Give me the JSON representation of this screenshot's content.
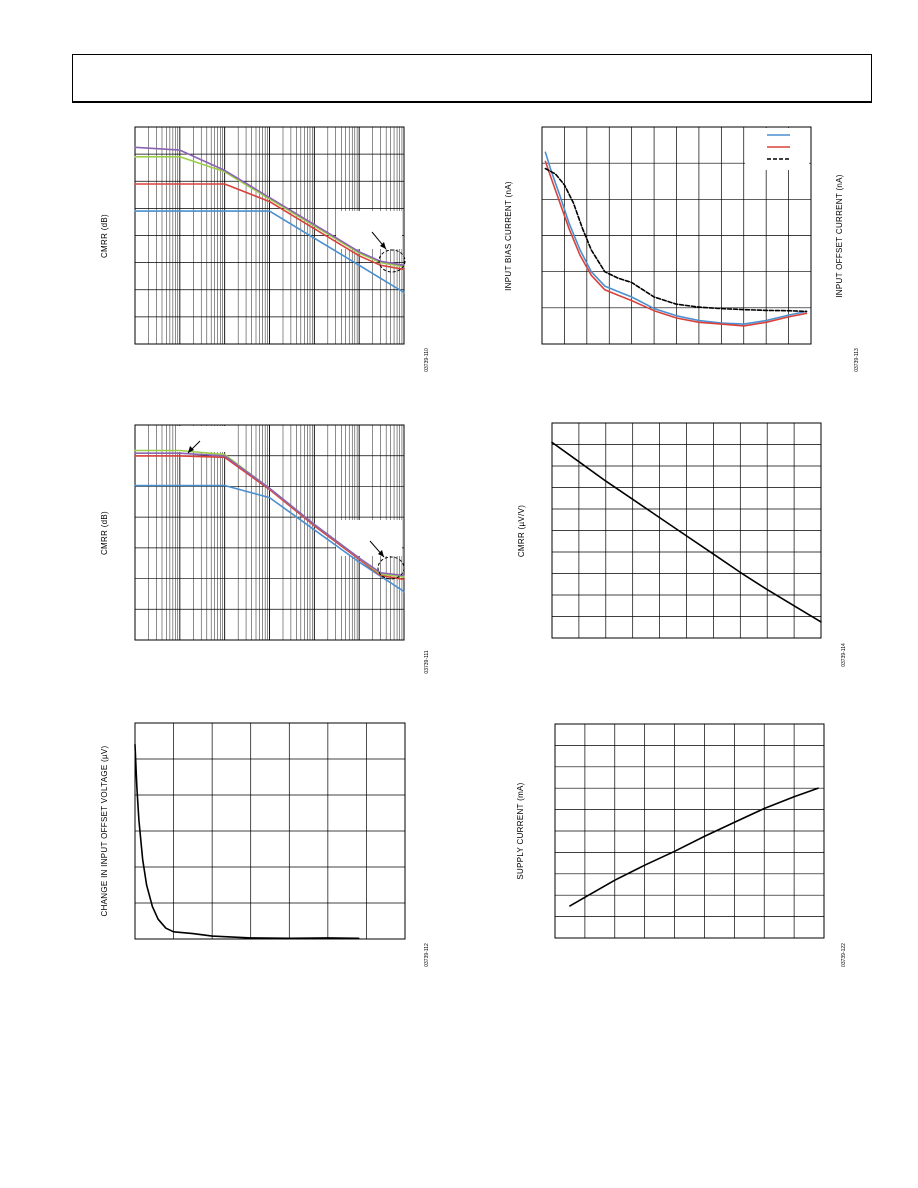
{
  "header": {
    "title": ""
  },
  "colors": {
    "blue": "#4a8fd0",
    "red": "#d9423a",
    "green": "#9ccf47",
    "purple": "#8c63b5",
    "black": "#000000"
  },
  "chart_data": [
    {
      "id": "c1",
      "type": "line",
      "x_scale": "log",
      "ylabel": "CMRR (dB)",
      "figure_id": "03739-110",
      "xlim": [
        1,
        1000000
      ],
      "ylim": [
        0,
        160
      ],
      "grid": true,
      "x_gridline_values": [
        2,
        3,
        4,
        5,
        6,
        7,
        8,
        9,
        10,
        20,
        30,
        40,
        50,
        60,
        70,
        80,
        90,
        100,
        200,
        300,
        400,
        500,
        600,
        700,
        800,
        900,
        1000,
        2000,
        3000,
        4000,
        5000,
        6000,
        7000,
        8000,
        9000,
        10000,
        20000,
        30000,
        40000,
        50000,
        60000,
        70000,
        80000,
        90000,
        100000,
        200000,
        300000,
        400000,
        500000,
        600000,
        700000,
        800000,
        900000
      ],
      "series": [
        {
          "color_key": "blue",
          "x": [
            1,
            10,
            100,
            1000,
            10000,
            100000,
            1000000
          ],
          "y": [
            98,
            98,
            98,
            98,
            78,
            58,
            38
          ]
        },
        {
          "color_key": "red",
          "x": [
            1,
            10,
            100,
            1000,
            10000,
            100000,
            300000,
            1000000
          ],
          "y": [
            118,
            118,
            118,
            105,
            85,
            65,
            58,
            55
          ]
        },
        {
          "color_key": "green",
          "x": [
            1,
            10,
            100,
            1000,
            10000,
            100000,
            300000,
            1000000
          ],
          "y": [
            138,
            138,
            127,
            107,
            87,
            67,
            60,
            57
          ]
        },
        {
          "color_key": "purple",
          "x": [
            1,
            10,
            100,
            1000,
            10000,
            100000,
            300000,
            1000000
          ],
          "y": [
            145,
            143,
            128,
            108,
            88,
            68,
            61,
            58
          ]
        }
      ]
    },
    {
      "id": "c2",
      "type": "line",
      "ylabel": "INPUT BIAS CURRENT (nA)",
      "ylabel_right": "INPUT OFFSET CURRENT (nA)",
      "figure_id": "03739-113",
      "xlim": [
        0,
        12
      ],
      "ylim": [
        0,
        6
      ],
      "grid": true,
      "series": [
        {
          "color_key": "blue",
          "x": [
            0.15,
            0.4,
            0.8,
            1.2,
            1.7,
            2.2,
            2.8,
            3.4,
            4.0,
            5.0,
            6.0,
            7.0,
            8.0,
            9.0,
            10.0,
            11.0,
            11.8
          ],
          "y": [
            5.3,
            4.8,
            4.1,
            3.35,
            2.6,
            2.0,
            1.6,
            1.45,
            1.3,
            0.98,
            0.78,
            0.65,
            0.58,
            0.55,
            0.65,
            0.8,
            0.9
          ]
        },
        {
          "color_key": "red",
          "x": [
            0.15,
            0.4,
            0.8,
            1.2,
            1.7,
            2.2,
            2.8,
            3.4,
            4.0,
            5.0,
            6.0,
            7.0,
            8.0,
            9.0,
            10.0,
            11.0,
            11.8
          ],
          "y": [
            5.05,
            4.6,
            3.9,
            3.2,
            2.45,
            1.9,
            1.5,
            1.35,
            1.2,
            0.92,
            0.72,
            0.6,
            0.55,
            0.5,
            0.6,
            0.75,
            0.85
          ]
        },
        {
          "color_key": "black",
          "style": "dashed",
          "x": [
            0.15,
            0.6,
            1.0,
            1.4,
            1.8,
            2.2,
            2.8,
            3.4,
            4.0,
            5.0,
            6.0,
            7.0,
            8.0,
            9.0,
            10.0,
            11.0,
            11.8
          ],
          "y": [
            4.85,
            4.7,
            4.4,
            3.9,
            3.2,
            2.6,
            2.0,
            1.82,
            1.7,
            1.3,
            1.1,
            1.02,
            0.98,
            0.95,
            0.93,
            0.92,
            0.9
          ]
        }
      ]
    },
    {
      "id": "c3",
      "type": "line",
      "x_scale": "log",
      "ylabel": "CMRR (dB)",
      "figure_id": "03739-111",
      "xlim": [
        1,
        1000000
      ],
      "ylim": [
        0,
        160
      ],
      "grid": true,
      "x_gridline_values": [
        2,
        3,
        4,
        5,
        6,
        7,
        8,
        9,
        10,
        20,
        30,
        40,
        50,
        60,
        70,
        80,
        90,
        100,
        200,
        300,
        400,
        500,
        600,
        700,
        800,
        900,
        1000,
        2000,
        3000,
        4000,
        5000,
        6000,
        7000,
        8000,
        9000,
        10000,
        20000,
        30000,
        40000,
        50000,
        60000,
        70000,
        80000,
        90000,
        100000,
        200000,
        300000,
        400000,
        500000,
        600000,
        700000,
        800000,
        900000
      ],
      "series": [
        {
          "color_key": "blue",
          "x": [
            1,
            10,
            100,
            1000,
            10000,
            100000,
            1000000
          ],
          "y": [
            115,
            115,
            115,
            106,
            82,
            58,
            36
          ]
        },
        {
          "color_key": "red",
          "x": [
            1,
            10,
            100,
            1000,
            10000,
            100000,
            300000,
            1000000
          ],
          "y": [
            137,
            137,
            136,
            112,
            85,
            60,
            48,
            45
          ]
        },
        {
          "color_key": "green",
          "x": [
            1,
            10,
            100,
            1000,
            10000,
            100000,
            300000,
            1000000
          ],
          "y": [
            141,
            141,
            138,
            113,
            86,
            61,
            49,
            47
          ]
        },
        {
          "color_key": "purple",
          "x": [
            1,
            10,
            100,
            1000,
            10000,
            100000,
            300000,
            1000000
          ],
          "y": [
            139,
            139,
            137,
            113,
            86,
            61,
            50,
            48
          ]
        }
      ]
    },
    {
      "id": "c4",
      "type": "line",
      "ylabel": "CMRR (µV/V)",
      "figure_id": "03739-114",
      "xlim": [
        0,
        10
      ],
      "ylim": [
        0,
        10
      ],
      "grid": true,
      "series": [
        {
          "color_key": "black",
          "x": [
            0,
            1,
            2,
            3,
            4,
            5,
            6,
            7,
            8,
            9,
            10
          ],
          "y": [
            9.1,
            8.2,
            7.3,
            6.45,
            5.6,
            4.75,
            3.9,
            3.05,
            2.25,
            1.5,
            0.75
          ]
        }
      ]
    },
    {
      "id": "c5",
      "type": "line",
      "ylabel": "CHANGE IN INPUT OFFSET VOLTAGE (µV)",
      "figure_id": "03739-112",
      "xlim": [
        0,
        7
      ],
      "ylim": [
        0,
        6
      ],
      "grid": true,
      "series": [
        {
          "color_key": "black",
          "x": [
            0,
            0.05,
            0.1,
            0.2,
            0.3,
            0.45,
            0.6,
            0.8,
            1.0,
            1.5,
            2.0,
            3.0,
            4.0,
            5.0,
            5.8
          ],
          "y": [
            5.4,
            4.2,
            3.3,
            2.2,
            1.5,
            0.9,
            0.55,
            0.3,
            0.2,
            0.15,
            0.08,
            0.03,
            0.02,
            0.03,
            0.02
          ]
        }
      ]
    },
    {
      "id": "c6",
      "type": "line",
      "ylabel": "SUPPLY CURRENT (mA)",
      "figure_id": "03739-122",
      "xlim": [
        0,
        9
      ],
      "ylim": [
        0,
        10
      ],
      "grid": true,
      "series": [
        {
          "color_key": "black",
          "x": [
            0.5,
            1.0,
            2.0,
            3.0,
            4.0,
            5.0,
            6.0,
            7.0,
            8.0,
            8.8
          ],
          "y": [
            1.5,
            1.9,
            2.7,
            3.4,
            4.05,
            4.75,
            5.4,
            6.05,
            6.6,
            7.0
          ]
        }
      ]
    }
  ]
}
